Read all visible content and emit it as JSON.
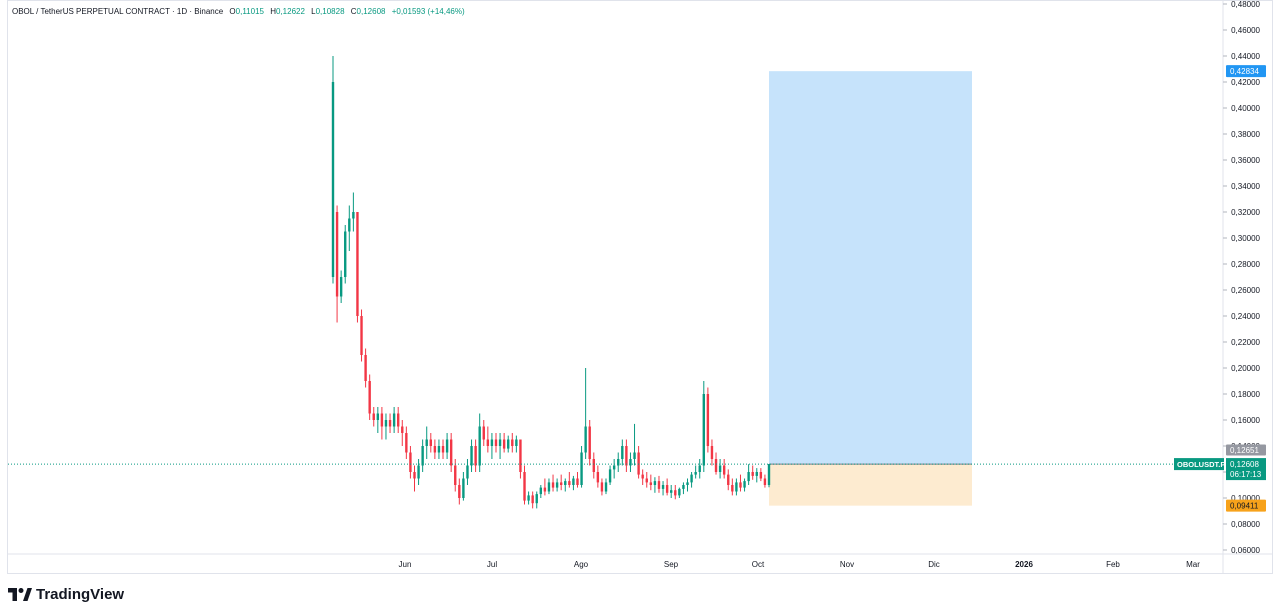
{
  "header": {
    "symbol": "OBOL / TetherUS PERPETUAL CONTRACT · 1D · Binance",
    "o_key": "O",
    "o_val": "0,11015",
    "h_key": "H",
    "h_val": "0,12622",
    "l_key": "L",
    "l_val": "0,10828",
    "c_key": "C",
    "c_val": "0,12608",
    "change": "+0,01593 (+14,46%)"
  },
  "brand": {
    "name": "TradingView"
  },
  "colors": {
    "up": "#089981",
    "down": "#f23645",
    "target_zone": "#c6e3fb",
    "stop_zone": "#fdebd0",
    "target_tag": "#2196f3",
    "stop_tag": "#f7a21b",
    "grid": "#e0e3eb",
    "price_line": "#089981"
  },
  "chart_data": {
    "type": "candlestick",
    "interval": "1D",
    "price_axis": {
      "ticks": [
        "0,48000",
        "0,46000",
        "0,44000",
        "0,42000",
        "0,40000",
        "0,38000",
        "0,36000",
        "0,34000",
        "0,32000",
        "0,30000",
        "0,28000",
        "0,26000",
        "0,24000",
        "0,22000",
        "0,20000",
        "0,18000",
        "0,16000",
        "0,14000",
        "0,12000",
        "0,10000",
        "0,08000",
        "0,06000"
      ],
      "range": [
        0.06,
        0.48
      ]
    },
    "time_axis": {
      "ticks": [
        "Jun",
        "Jul",
        "Ago",
        "Sep",
        "Oct",
        "Nov",
        "Dic",
        "2026",
        "Feb",
        "Mar"
      ],
      "bold_tick": "2026"
    },
    "candles": [
      {
        "o": 0.27,
        "h": 0.44,
        "l": 0.265,
        "c": 0.42
      },
      {
        "o": 0.32,
        "h": 0.325,
        "l": 0.235,
        "c": 0.255
      },
      {
        "o": 0.255,
        "h": 0.275,
        "l": 0.25,
        "c": 0.27
      },
      {
        "o": 0.27,
        "h": 0.31,
        "l": 0.265,
        "c": 0.305
      },
      {
        "o": 0.305,
        "h": 0.325,
        "l": 0.29,
        "c": 0.315
      },
      {
        "o": 0.315,
        "h": 0.335,
        "l": 0.305,
        "c": 0.32
      },
      {
        "o": 0.32,
        "h": 0.32,
        "l": 0.235,
        "c": 0.24
      },
      {
        "o": 0.24,
        "h": 0.245,
        "l": 0.205,
        "c": 0.21
      },
      {
        "o": 0.21,
        "h": 0.215,
        "l": 0.185,
        "c": 0.19
      },
      {
        "o": 0.19,
        "h": 0.195,
        "l": 0.16,
        "c": 0.165
      },
      {
        "o": 0.165,
        "h": 0.17,
        "l": 0.155,
        "c": 0.16
      },
      {
        "o": 0.16,
        "h": 0.17,
        "l": 0.15,
        "c": 0.165
      },
      {
        "o": 0.165,
        "h": 0.17,
        "l": 0.145,
        "c": 0.155
      },
      {
        "o": 0.155,
        "h": 0.165,
        "l": 0.145,
        "c": 0.16
      },
      {
        "o": 0.16,
        "h": 0.165,
        "l": 0.15,
        "c": 0.155
      },
      {
        "o": 0.155,
        "h": 0.17,
        "l": 0.15,
        "c": 0.165
      },
      {
        "o": 0.165,
        "h": 0.17,
        "l": 0.15,
        "c": 0.155
      },
      {
        "o": 0.155,
        "h": 0.16,
        "l": 0.14,
        "c": 0.15
      },
      {
        "o": 0.15,
        "h": 0.155,
        "l": 0.13,
        "c": 0.135
      },
      {
        "o": 0.135,
        "h": 0.14,
        "l": 0.115,
        "c": 0.12
      },
      {
        "o": 0.12,
        "h": 0.125,
        "l": 0.105,
        "c": 0.115
      },
      {
        "o": 0.115,
        "h": 0.13,
        "l": 0.11,
        "c": 0.125
      },
      {
        "o": 0.125,
        "h": 0.145,
        "l": 0.12,
        "c": 0.14
      },
      {
        "o": 0.14,
        "h": 0.155,
        "l": 0.13,
        "c": 0.145
      },
      {
        "o": 0.145,
        "h": 0.15,
        "l": 0.135,
        "c": 0.14
      },
      {
        "o": 0.14,
        "h": 0.145,
        "l": 0.13,
        "c": 0.135
      },
      {
        "o": 0.135,
        "h": 0.145,
        "l": 0.13,
        "c": 0.14
      },
      {
        "o": 0.14,
        "h": 0.145,
        "l": 0.13,
        "c": 0.135
      },
      {
        "o": 0.135,
        "h": 0.15,
        "l": 0.13,
        "c": 0.145
      },
      {
        "o": 0.145,
        "h": 0.15,
        "l": 0.12,
        "c": 0.125
      },
      {
        "o": 0.125,
        "h": 0.13,
        "l": 0.105,
        "c": 0.11
      },
      {
        "o": 0.11,
        "h": 0.115,
        "l": 0.095,
        "c": 0.1
      },
      {
        "o": 0.1,
        "h": 0.12,
        "l": 0.098,
        "c": 0.115
      },
      {
        "o": 0.115,
        "h": 0.13,
        "l": 0.11,
        "c": 0.125
      },
      {
        "o": 0.125,
        "h": 0.145,
        "l": 0.12,
        "c": 0.14
      },
      {
        "o": 0.14,
        "h": 0.145,
        "l": 0.12,
        "c": 0.125
      },
      {
        "o": 0.125,
        "h": 0.165,
        "l": 0.12,
        "c": 0.155
      },
      {
        "o": 0.155,
        "h": 0.16,
        "l": 0.14,
        "c": 0.145
      },
      {
        "o": 0.145,
        "h": 0.155,
        "l": 0.135,
        "c": 0.14
      },
      {
        "o": 0.14,
        "h": 0.15,
        "l": 0.13,
        "c": 0.145
      },
      {
        "o": 0.145,
        "h": 0.15,
        "l": 0.135,
        "c": 0.14
      },
      {
        "o": 0.14,
        "h": 0.15,
        "l": 0.13,
        "c": 0.145
      },
      {
        "o": 0.145,
        "h": 0.15,
        "l": 0.135,
        "c": 0.138
      },
      {
        "o": 0.138,
        "h": 0.148,
        "l": 0.135,
        "c": 0.145
      },
      {
        "o": 0.145,
        "h": 0.15,
        "l": 0.135,
        "c": 0.14
      },
      {
        "o": 0.14,
        "h": 0.148,
        "l": 0.135,
        "c": 0.145
      },
      {
        "o": 0.145,
        "h": 0.145,
        "l": 0.115,
        "c": 0.12
      },
      {
        "o": 0.12,
        "h": 0.125,
        "l": 0.095,
        "c": 0.098
      },
      {
        "o": 0.098,
        "h": 0.105,
        "l": 0.095,
        "c": 0.102
      },
      {
        "o": 0.102,
        "h": 0.105,
        "l": 0.092,
        "c": 0.096
      },
      {
        "o": 0.096,
        "h": 0.105,
        "l": 0.092,
        "c": 0.103
      },
      {
        "o": 0.103,
        "h": 0.11,
        "l": 0.1,
        "c": 0.108
      },
      {
        "o": 0.108,
        "h": 0.115,
        "l": 0.102,
        "c": 0.105
      },
      {
        "o": 0.105,
        "h": 0.115,
        "l": 0.103,
        "c": 0.112
      },
      {
        "o": 0.112,
        "h": 0.118,
        "l": 0.105,
        "c": 0.108
      },
      {
        "o": 0.108,
        "h": 0.115,
        "l": 0.105,
        "c": 0.112
      },
      {
        "o": 0.112,
        "h": 0.118,
        "l": 0.106,
        "c": 0.11
      },
      {
        "o": 0.11,
        "h": 0.115,
        "l": 0.105,
        "c": 0.113
      },
      {
        "o": 0.113,
        "h": 0.12,
        "l": 0.108,
        "c": 0.11
      },
      {
        "o": 0.11,
        "h": 0.117,
        "l": 0.106,
        "c": 0.115
      },
      {
        "o": 0.115,
        "h": 0.12,
        "l": 0.108,
        "c": 0.11
      },
      {
        "o": 0.11,
        "h": 0.14,
        "l": 0.108,
        "c": 0.135
      },
      {
        "o": 0.135,
        "h": 0.2,
        "l": 0.13,
        "c": 0.155
      },
      {
        "o": 0.155,
        "h": 0.16,
        "l": 0.125,
        "c": 0.13
      },
      {
        "o": 0.13,
        "h": 0.135,
        "l": 0.115,
        "c": 0.12
      },
      {
        "o": 0.12,
        "h": 0.125,
        "l": 0.108,
        "c": 0.112
      },
      {
        "o": 0.112,
        "h": 0.115,
        "l": 0.102,
        "c": 0.105
      },
      {
        "o": 0.105,
        "h": 0.115,
        "l": 0.103,
        "c": 0.112
      },
      {
        "o": 0.112,
        "h": 0.125,
        "l": 0.11,
        "c": 0.122
      },
      {
        "o": 0.122,
        "h": 0.13,
        "l": 0.115,
        "c": 0.125
      },
      {
        "o": 0.125,
        "h": 0.135,
        "l": 0.12,
        "c": 0.13
      },
      {
        "o": 0.13,
        "h": 0.145,
        "l": 0.125,
        "c": 0.14
      },
      {
        "o": 0.14,
        "h": 0.145,
        "l": 0.12,
        "c": 0.125
      },
      {
        "o": 0.125,
        "h": 0.135,
        "l": 0.12,
        "c": 0.13
      },
      {
        "o": 0.13,
        "h": 0.157,
        "l": 0.125,
        "c": 0.135
      },
      {
        "o": 0.135,
        "h": 0.14,
        "l": 0.115,
        "c": 0.118
      },
      {
        "o": 0.118,
        "h": 0.122,
        "l": 0.11,
        "c": 0.115
      },
      {
        "o": 0.115,
        "h": 0.12,
        "l": 0.108,
        "c": 0.112
      },
      {
        "o": 0.112,
        "h": 0.118,
        "l": 0.106,
        "c": 0.11
      },
      {
        "o": 0.11,
        "h": 0.116,
        "l": 0.104,
        "c": 0.113
      },
      {
        "o": 0.113,
        "h": 0.117,
        "l": 0.104,
        "c": 0.107
      },
      {
        "o": 0.107,
        "h": 0.113,
        "l": 0.102,
        "c": 0.11
      },
      {
        "o": 0.11,
        "h": 0.115,
        "l": 0.102,
        "c": 0.104
      },
      {
        "o": 0.104,
        "h": 0.11,
        "l": 0.1,
        "c": 0.106
      },
      {
        "o": 0.106,
        "h": 0.11,
        "l": 0.099,
        "c": 0.102
      },
      {
        "o": 0.102,
        "h": 0.108,
        "l": 0.1,
        "c": 0.107
      },
      {
        "o": 0.107,
        "h": 0.112,
        "l": 0.103,
        "c": 0.11
      },
      {
        "o": 0.11,
        "h": 0.115,
        "l": 0.105,
        "c": 0.112
      },
      {
        "o": 0.112,
        "h": 0.12,
        "l": 0.108,
        "c": 0.118
      },
      {
        "o": 0.118,
        "h": 0.125,
        "l": 0.115,
        "c": 0.12
      },
      {
        "o": 0.12,
        "h": 0.13,
        "l": 0.115,
        "c": 0.125
      },
      {
        "o": 0.125,
        "h": 0.19,
        "l": 0.12,
        "c": 0.18
      },
      {
        "o": 0.18,
        "h": 0.185,
        "l": 0.135,
        "c": 0.14
      },
      {
        "o": 0.14,
        "h": 0.145,
        "l": 0.125,
        "c": 0.13
      },
      {
        "o": 0.13,
        "h": 0.135,
        "l": 0.118,
        "c": 0.12
      },
      {
        "o": 0.12,
        "h": 0.13,
        "l": 0.115,
        "c": 0.125
      },
      {
        "o": 0.125,
        "h": 0.13,
        "l": 0.115,
        "c": 0.118
      },
      {
        "o": 0.118,
        "h": 0.122,
        "l": 0.106,
        "c": 0.11
      },
      {
        "o": 0.11,
        "h": 0.115,
        "l": 0.102,
        "c": 0.105
      },
      {
        "o": 0.105,
        "h": 0.115,
        "l": 0.102,
        "c": 0.112
      },
      {
        "o": 0.112,
        "h": 0.118,
        "l": 0.105,
        "c": 0.108
      },
      {
        "o": 0.108,
        "h": 0.115,
        "l": 0.105,
        "c": 0.113
      },
      {
        "o": 0.113,
        "h": 0.126,
        "l": 0.11,
        "c": 0.12
      },
      {
        "o": 0.12,
        "h": 0.125,
        "l": 0.114,
        "c": 0.117
      },
      {
        "o": 0.117,
        "h": 0.123,
        "l": 0.112,
        "c": 0.12
      },
      {
        "o": 0.12,
        "h": 0.123,
        "l": 0.113,
        "c": 0.115
      },
      {
        "o": 0.115,
        "h": 0.118,
        "l": 0.108,
        "c": 0.11
      },
      {
        "o": 0.11,
        "h": 0.1262,
        "l": 0.1083,
        "c": 0.1261
      }
    ],
    "current_price_line": 0.12608,
    "position_tool": {
      "type": "long",
      "entry": 0.12608,
      "target": 0.42834,
      "stop": 0.09411
    },
    "price_tags": {
      "target": "0,42834",
      "prev_close": "0,12651",
      "symbol_label": "OBOLUSDT.P",
      "current": "0,12608",
      "countdown": "06:17:13",
      "stop": "0,09411"
    }
  }
}
